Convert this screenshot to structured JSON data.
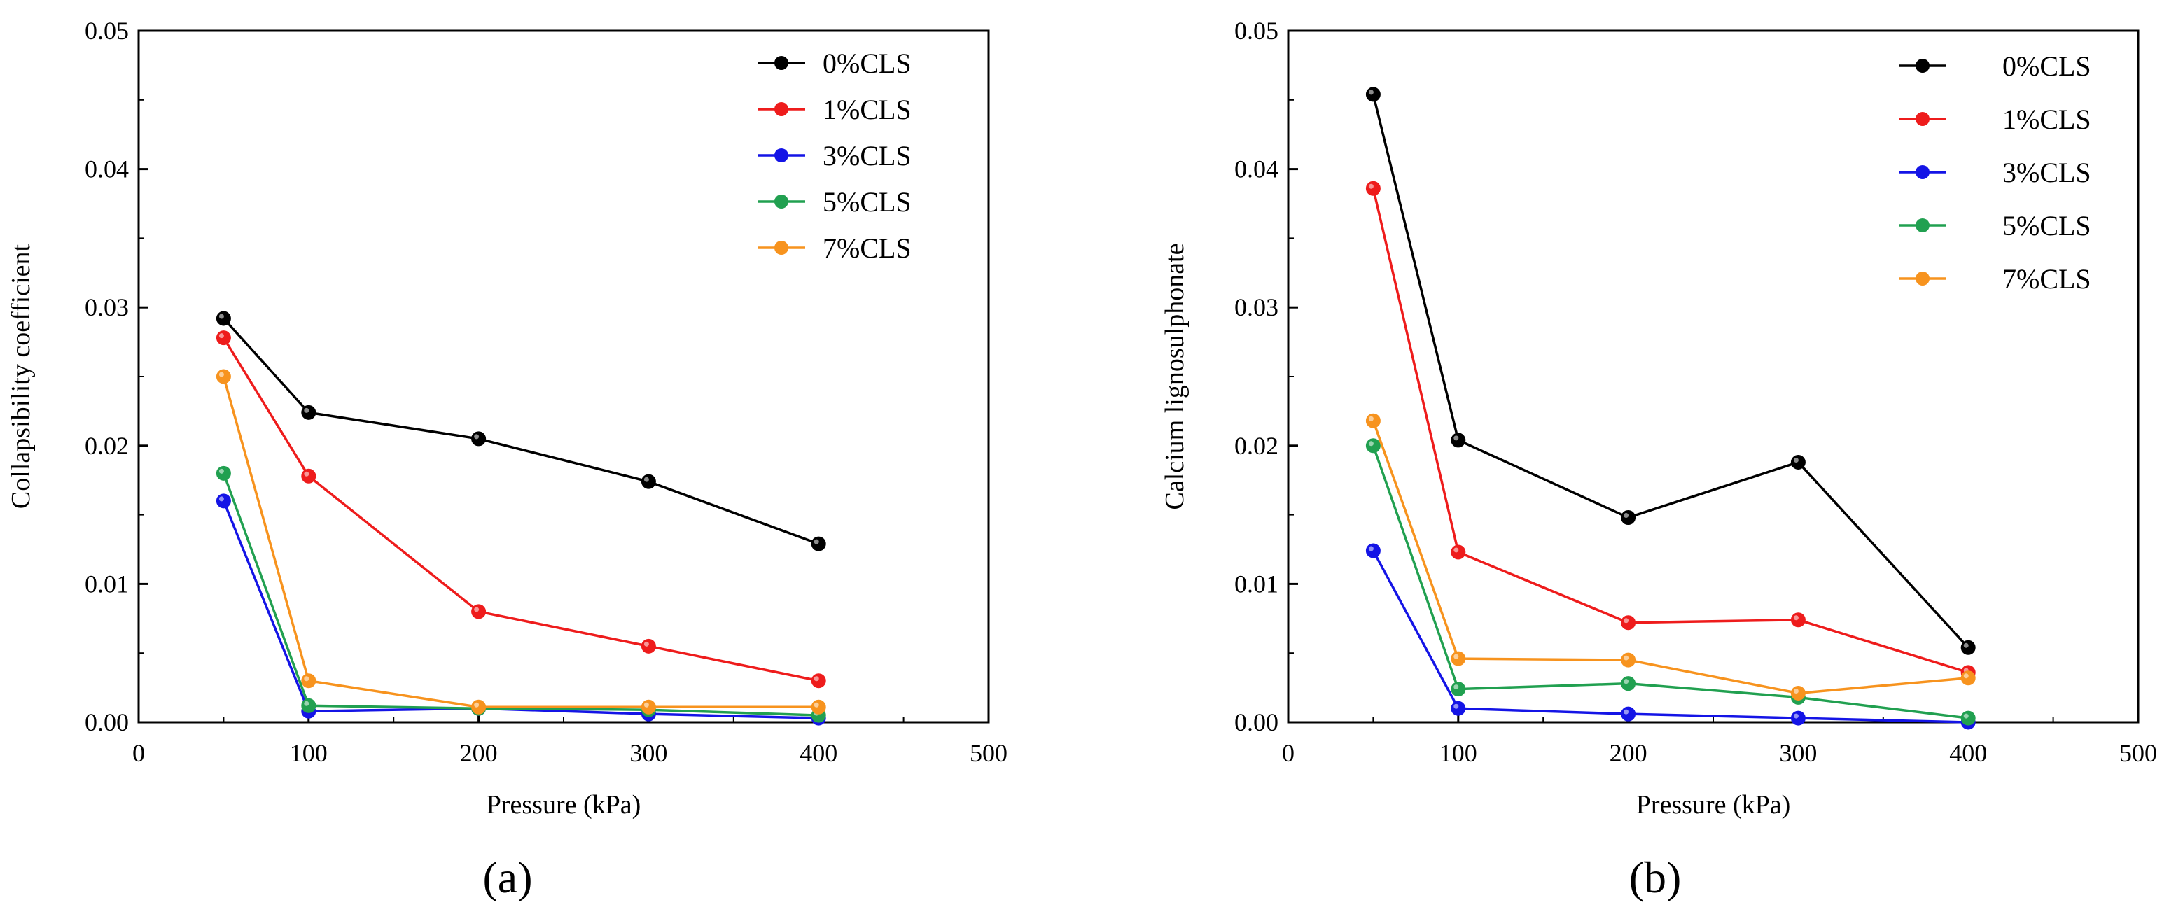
{
  "chart_data": [
    {
      "type": "line",
      "panel_label": "(a)",
      "xlabel": "Pressure (kPa)",
      "ylabel": "Collapsibility coefficient",
      "xlim": [
        0,
        500
      ],
      "ylim": [
        0,
        0.05
      ],
      "xticks": [
        "0",
        "100",
        "200",
        "300",
        "400",
        "500"
      ],
      "yticks": [
        "0.00",
        "0.01",
        "0.02",
        "0.03",
        "0.04",
        "0.05"
      ],
      "legend_position": "top-right",
      "x": [
        50,
        100,
        200,
        300,
        400
      ],
      "series": [
        {
          "name": "0%CLS",
          "color": "#000000",
          "values": [
            0.0292,
            0.0224,
            0.0205,
            0.0174,
            0.0129
          ]
        },
        {
          "name": "1%CLS",
          "color": "#ee1c1c",
          "values": [
            0.0278,
            0.0178,
            0.008,
            0.0055,
            0.003
          ]
        },
        {
          "name": "3%CLS",
          "color": "#1414e6",
          "values": [
            0.016,
            0.0008,
            0.001,
            0.0006,
            0.0003
          ]
        },
        {
          "name": "5%CLS",
          "color": "#21a050",
          "values": [
            0.018,
            0.0012,
            0.001,
            0.0009,
            0.0005
          ]
        },
        {
          "name": "7%CLS",
          "color": "#f7931e",
          "values": [
            0.025,
            0.003,
            0.0011,
            0.0011,
            0.0011
          ]
        }
      ]
    },
    {
      "type": "line",
      "panel_label": "(b)",
      "xlabel": "Pressure (kPa)",
      "ylabel": "Calcium lignosulphonate",
      "xlim": [
        0,
        500
      ],
      "ylim": [
        0,
        0.05
      ],
      "xticks": [
        "0",
        "100",
        "200",
        "300",
        "400",
        "500"
      ],
      "yticks": [
        "0.00",
        "0.01",
        "0.02",
        "0.03",
        "0.04",
        "0.05"
      ],
      "legend_position": "top-right",
      "x": [
        50,
        100,
        200,
        300,
        400
      ],
      "series": [
        {
          "name": "0%CLS",
          "color": "#000000",
          "values": [
            0.0454,
            0.0204,
            0.0148,
            0.0188,
            0.0054
          ]
        },
        {
          "name": "1%CLS",
          "color": "#ee1c1c",
          "values": [
            0.0386,
            0.0123,
            0.0072,
            0.0074,
            0.0036
          ]
        },
        {
          "name": "3%CLS",
          "color": "#1414e6",
          "values": [
            0.0124,
            0.001,
            0.0006,
            0.0003,
            0.0
          ]
        },
        {
          "name": "5%CLS",
          "color": "#21a050",
          "values": [
            0.02,
            0.0024,
            0.0028,
            0.0018,
            0.0003
          ]
        },
        {
          "name": "7%CLS",
          "color": "#f7931e",
          "values": [
            0.0218,
            0.0046,
            0.0045,
            0.0021,
            0.0032
          ]
        }
      ]
    }
  ]
}
